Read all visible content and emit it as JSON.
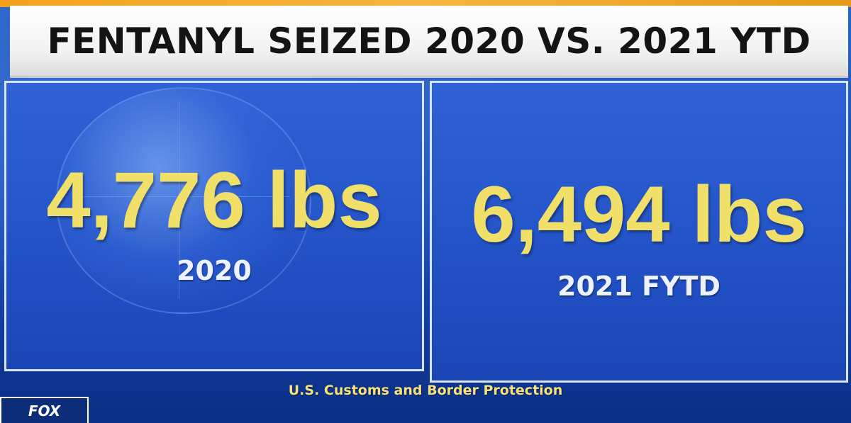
{
  "title": "FENTANYL SEIZED 2020 VS. 2021 YTD",
  "panels": [
    {
      "value": "4,776 lbs",
      "label": "2020"
    },
    {
      "value": "6,494 lbs",
      "label": "2021 FYTD"
    }
  ],
  "source": "U.S. Customs and Border Protection",
  "logo": {
    "icon": "fox-logo-icon",
    "text": "FOX"
  },
  "colors": {
    "title_bg": "#f2f2f2",
    "panel_blue": "#2353c7",
    "value_yellow": "#f0e06a",
    "label_white": "#eef2ff",
    "source_yellow": "#f5e27a",
    "accent_orange": "#f3a21a"
  }
}
